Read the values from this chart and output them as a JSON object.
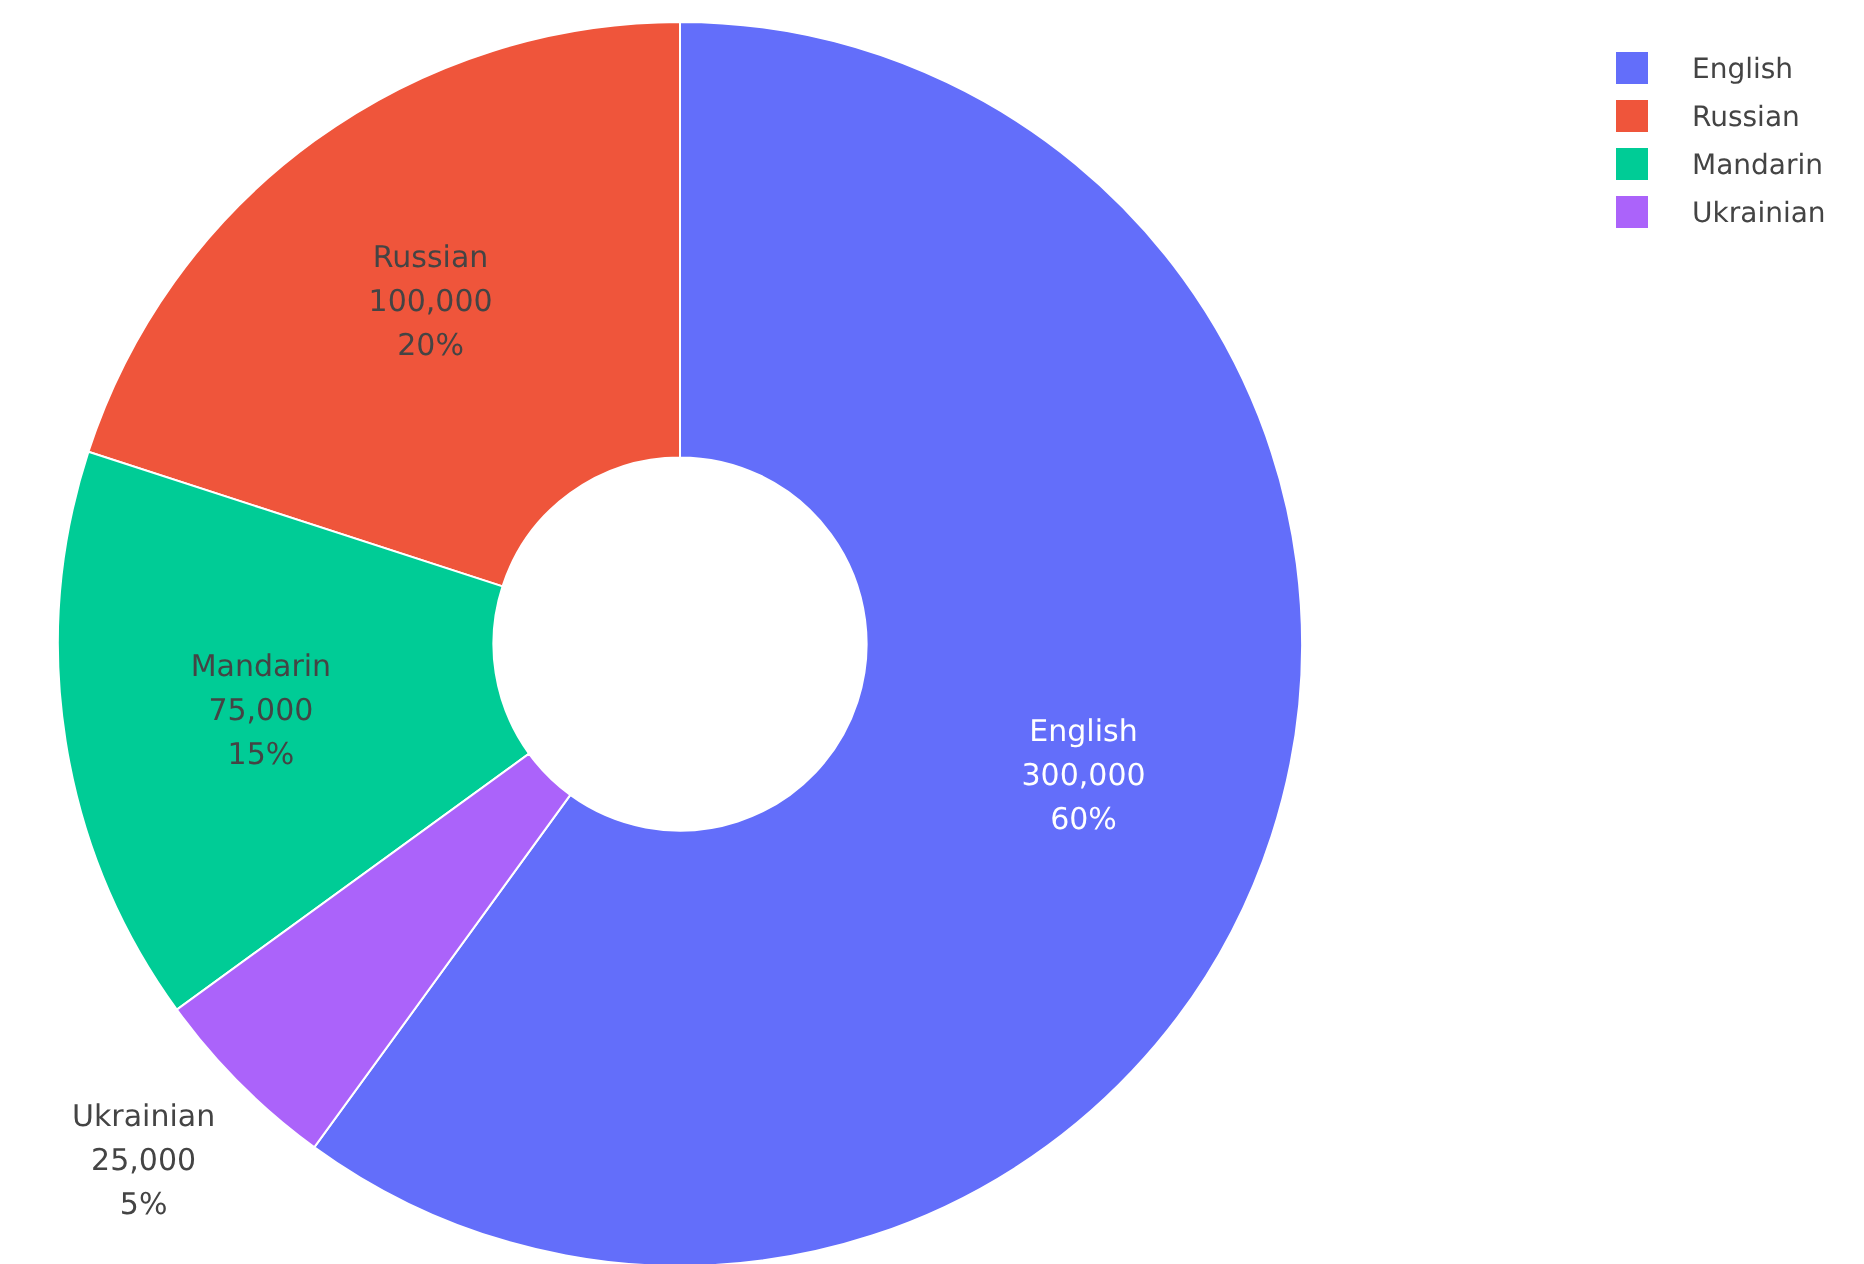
{
  "chart_data": {
    "type": "donut",
    "categories": [
      "English",
      "Russian",
      "Mandarin",
      "Ukrainian"
    ],
    "values": [
      300000,
      100000,
      75000,
      25000
    ],
    "colors": [
      "#636efa",
      "#ef553b",
      "#00cc96",
      "#ab63fa"
    ],
    "value_labels": [
      "300,000\n60%",
      "100,000\n20%",
      "75,000\n15%",
      "25,000\n5%"
    ],
    "legend": "top right"
  }
}
